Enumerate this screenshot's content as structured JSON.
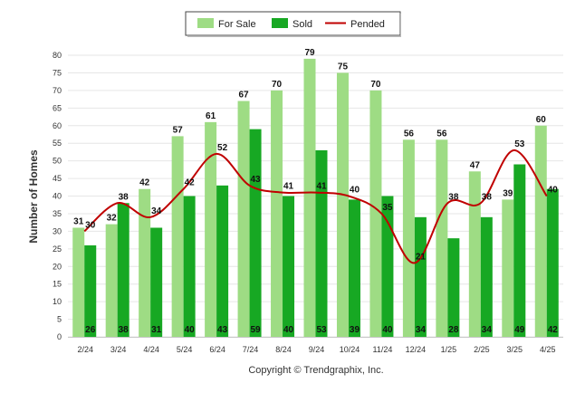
{
  "chart_data": {
    "type": "bar",
    "ylabel": "Number of Homes",
    "ylim": [
      0,
      80
    ],
    "yticks": [
      0,
      5,
      10,
      15,
      20,
      25,
      30,
      35,
      40,
      45,
      50,
      55,
      60,
      65,
      70,
      75,
      80
    ],
    "grid": true,
    "legend_position": "top-center",
    "categories": [
      "2/24",
      "3/24",
      "4/24",
      "5/24",
      "6/24",
      "7/24",
      "8/24",
      "9/24",
      "10/24",
      "11/24",
      "12/24",
      "1/25",
      "2/25",
      "3/25",
      "4/25"
    ],
    "series": [
      {
        "name": "For Sale",
        "kind": "bar",
        "color": "#9edc84",
        "values": [
          31,
          32,
          42,
          57,
          61,
          67,
          70,
          79,
          75,
          70,
          56,
          56,
          47,
          39,
          60
        ]
      },
      {
        "name": "Sold",
        "kind": "bar",
        "color": "#17a823",
        "values": [
          26,
          38,
          31,
          40,
          43,
          59,
          40,
          53,
          39,
          40,
          34,
          28,
          34,
          49,
          42
        ]
      },
      {
        "name": "Pended",
        "kind": "line",
        "color": "#c00000",
        "values": [
          30,
          38,
          34,
          42,
          52,
          43,
          41,
          41,
          40,
          35,
          21,
          38,
          38,
          53,
          40
        ]
      }
    ]
  },
  "copyright": "Copyright © Trendgraphix, Inc."
}
